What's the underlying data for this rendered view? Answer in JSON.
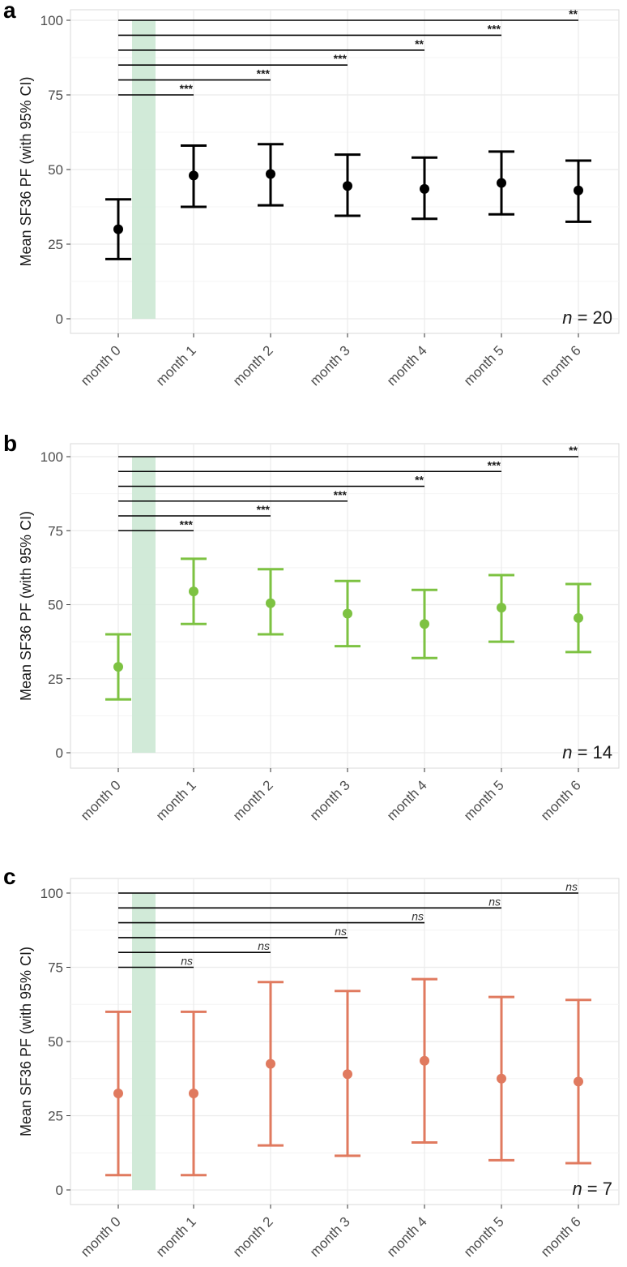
{
  "chart_data": [
    {
      "type": "errorbar",
      "panel": "a",
      "color": "#000000",
      "ylabel": "Mean SF36 PF (with 95% CI)",
      "ylim": [
        0,
        100
      ],
      "yticks": [
        "0",
        "25",
        "50",
        "75",
        "100"
      ],
      "categories": [
        "month 0",
        "month 1",
        "month 2",
        "month 3",
        "month 4",
        "month 5",
        "month 6"
      ],
      "means": [
        30,
        48,
        48.5,
        44.5,
        43.5,
        45.5,
        43
      ],
      "lower": [
        20,
        37.5,
        38,
        34.5,
        33.5,
        35,
        32.5
      ],
      "upper": [
        40,
        58,
        58.5,
        55,
        54,
        56,
        53
      ],
      "shaded_band": {
        "from": "month 0",
        "to": "month 1",
        "color": "#cce8d4"
      },
      "comparisons": [
        {
          "target": "month 1",
          "y": 75,
          "label": "***"
        },
        {
          "target": "month 2",
          "y": 80,
          "label": "***"
        },
        {
          "target": "month 3",
          "y": 85,
          "label": "***"
        },
        {
          "target": "month 4",
          "y": 90,
          "label": "**"
        },
        {
          "target": "month 5",
          "y": 95,
          "label": "***"
        },
        {
          "target": "month 6",
          "y": 100,
          "label": "**"
        }
      ],
      "n_prefix": "n",
      "n_value": " = 20"
    },
    {
      "type": "errorbar",
      "panel": "b",
      "color": "#7dc242",
      "ylabel": "Mean SF36 PF (with 95% CI)",
      "ylim": [
        0,
        100
      ],
      "yticks": [
        "0",
        "25",
        "50",
        "75",
        "100"
      ],
      "categories": [
        "month 0",
        "month 1",
        "month 2",
        "month 3",
        "month 4",
        "month 5",
        "month 6"
      ],
      "means": [
        29,
        54.5,
        50.5,
        47,
        43.5,
        49,
        45.5
      ],
      "lower": [
        18,
        43.5,
        40,
        36,
        32,
        37.5,
        34
      ],
      "upper": [
        40,
        65.5,
        62,
        58,
        55,
        60,
        57
      ],
      "shaded_band": {
        "from": "month 0",
        "to": "month 1",
        "color": "#cce8d4"
      },
      "comparisons": [
        {
          "target": "month 1",
          "y": 75,
          "label": "***"
        },
        {
          "target": "month 2",
          "y": 80,
          "label": "***"
        },
        {
          "target": "month 3",
          "y": 85,
          "label": "***"
        },
        {
          "target": "month 4",
          "y": 90,
          "label": "**"
        },
        {
          "target": "month 5",
          "y": 95,
          "label": "***"
        },
        {
          "target": "month 6",
          "y": 100,
          "label": "**"
        }
      ],
      "n_prefix": "n",
      "n_value": " = 14"
    },
    {
      "type": "errorbar",
      "panel": "c",
      "color": "#e07a5f",
      "ylabel": "Mean SF36 PF (with 95% CI)",
      "ylim": [
        0,
        100
      ],
      "yticks": [
        "0",
        "25",
        "50",
        "75",
        "100"
      ],
      "categories": [
        "month 0",
        "month 1",
        "month 2",
        "month 3",
        "month 4",
        "month 5",
        "month 6"
      ],
      "means": [
        32.5,
        32.5,
        42.5,
        39,
        43.5,
        37.5,
        36.5
      ],
      "lower": [
        5,
        5,
        15,
        11.5,
        16,
        10,
        9
      ],
      "upper": [
        60,
        60,
        70,
        67,
        71,
        65,
        64
      ],
      "shaded_band": {
        "from": "month 0",
        "to": "month 1",
        "color": "#cce8d4"
      },
      "comparisons": [
        {
          "target": "month 1",
          "y": 75,
          "label": "ns"
        },
        {
          "target": "month 2",
          "y": 80,
          "label": "ns"
        },
        {
          "target": "month 3",
          "y": 85,
          "label": "ns"
        },
        {
          "target": "month 4",
          "y": 90,
          "label": "ns"
        },
        {
          "target": "month 5",
          "y": 95,
          "label": "ns"
        },
        {
          "target": "month 6",
          "y": 100,
          "label": "ns"
        }
      ],
      "n_prefix": "n",
      "n_value": " =  7"
    }
  ]
}
